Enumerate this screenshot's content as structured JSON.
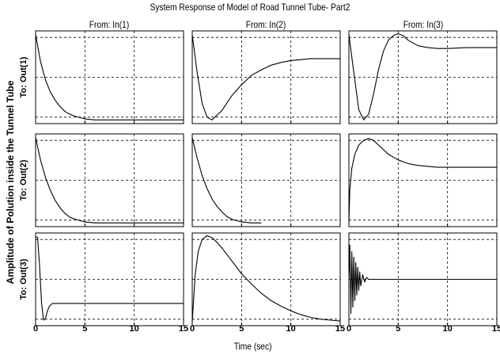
{
  "figure": {
    "title": "System Response of Model of Road Tunnel Tube- Part2",
    "xlabel": "Time (sec)",
    "ylabel": "Amplitude of Polution inside the Tunnel Tube",
    "columns": [
      "From: In(1)",
      "From: In(2)",
      "From: In(3)"
    ],
    "rows": [
      "To: Out(1)",
      "To: Out(2)",
      "To: Out(3)"
    ]
  },
  "chart_data": {
    "type": "line",
    "title": "System Response of Model of Road Tunnel Tube- Part2",
    "xlabel": "Time (sec)",
    "ylabel": "Amplitude of Polution inside the Tunnel Tube",
    "xlim": [
      0,
      15
    ],
    "xticks": [
      "0",
      "5",
      "10",
      "15"
    ],
    "grid": true,
    "ylim": [
      0,
      1
    ],
    "subplots": [
      {
        "row": "To: Out(1)",
        "col": "From: In(1)",
        "x": [
          0,
          0.5,
          1,
          1.5,
          2,
          2.5,
          3,
          3.5,
          4,
          5,
          6,
          8,
          10,
          12,
          15
        ],
        "y": [
          0.96,
          0.67,
          0.47,
          0.34,
          0.25,
          0.18,
          0.13,
          0.1,
          0.08,
          0.05,
          0.04,
          0.04,
          0.04,
          0.04,
          0.04
        ]
      },
      {
        "row": "To: Out(1)",
        "col": "From: In(2)",
        "x": [
          0,
          0.5,
          1,
          1.5,
          2,
          3,
          4,
          5,
          6,
          7,
          8,
          9,
          10,
          12,
          13,
          15
        ],
        "y": [
          0.96,
          0.55,
          0.22,
          0.07,
          0.04,
          0.14,
          0.3,
          0.42,
          0.52,
          0.58,
          0.63,
          0.66,
          0.68,
          0.7,
          0.7,
          0.7
        ]
      },
      {
        "row": "To: Out(1)",
        "col": "From: In(3)",
        "x": [
          0,
          0.5,
          1,
          1.5,
          2,
          2.5,
          3,
          3.5,
          4,
          4.5,
          5,
          5.5,
          6,
          7,
          8,
          9,
          10,
          12,
          15
        ],
        "y": [
          0.96,
          0.55,
          0.15,
          0.04,
          0.1,
          0.32,
          0.58,
          0.78,
          0.9,
          0.95,
          0.97,
          0.95,
          0.9,
          0.84,
          0.82,
          0.81,
          0.81,
          0.82,
          0.82
        ]
      },
      {
        "row": "To: Out(2)",
        "col": "From: In(1)",
        "x": [
          0,
          0.5,
          1,
          1.5,
          2,
          2.5,
          3,
          3.5,
          4,
          5,
          6,
          8,
          10,
          15
        ],
        "y": [
          0.96,
          0.72,
          0.53,
          0.39,
          0.28,
          0.2,
          0.14,
          0.1,
          0.08,
          0.05,
          0.04,
          0.04,
          0.04,
          0.04
        ]
      },
      {
        "row": "To: Out(2)",
        "col": "From: In(2)",
        "x": [
          0,
          0.5,
          1,
          1.5,
          2,
          2.5,
          3,
          3.5,
          4,
          5,
          6,
          7
        ],
        "y": [
          0.96,
          0.74,
          0.55,
          0.41,
          0.3,
          0.22,
          0.16,
          0.11,
          0.08,
          0.05,
          0.04,
          0.04
        ]
      },
      {
        "row": "To: Out(2)",
        "col": "From: In(3)",
        "x": [
          0,
          0.1,
          0.3,
          0.6,
          1,
          1.5,
          2,
          2.5,
          3,
          4,
          5,
          6,
          7,
          8,
          9,
          10,
          12,
          15
        ],
        "y": [
          0.04,
          0.4,
          0.63,
          0.78,
          0.88,
          0.93,
          0.95,
          0.93,
          0.88,
          0.78,
          0.72,
          0.68,
          0.66,
          0.65,
          0.64,
          0.64,
          0.64,
          0.64
        ]
      },
      {
        "row": "To: Out(3)",
        "col": "From: In(1)",
        "x": [
          0,
          0.2,
          0.4,
          0.6,
          0.8,
          1,
          1.2,
          1.4,
          1.7,
          2,
          2.5,
          3,
          5,
          10,
          15
        ],
        "y": [
          0.96,
          0.95,
          0.65,
          0.25,
          0.06,
          0.08,
          0.16,
          0.21,
          0.24,
          0.24,
          0.24,
          0.24,
          0.24,
          0.24,
          0.24
        ]
      },
      {
        "row": "To: Out(3)",
        "col": "From: In(2)",
        "x": [
          0,
          0.3,
          0.6,
          1,
          1.5,
          2,
          2.5,
          3,
          4,
          5,
          6,
          7,
          8,
          9,
          10,
          11,
          12,
          13,
          14,
          15
        ],
        "y": [
          0.04,
          0.55,
          0.8,
          0.93,
          0.97,
          0.95,
          0.9,
          0.84,
          0.7,
          0.56,
          0.45,
          0.35,
          0.27,
          0.21,
          0.16,
          0.12,
          0.09,
          0.07,
          0.06,
          0.05
        ]
      },
      {
        "row": "To: Out(3)",
        "col": "From: In(3)",
        "x": [
          0,
          0.1,
          0.2,
          0.3,
          0.4,
          0.5,
          0.6,
          0.7,
          0.8,
          0.9,
          1.0,
          1.1,
          1.2,
          1.4,
          1.6,
          1.8,
          2,
          2.5,
          3,
          5,
          10,
          15
        ],
        "y": [
          0.5,
          0.87,
          0.13,
          0.8,
          0.2,
          0.74,
          0.27,
          0.68,
          0.33,
          0.63,
          0.38,
          0.58,
          0.43,
          0.55,
          0.47,
          0.52,
          0.5,
          0.5,
          0.5,
          0.5,
          0.5,
          0.5
        ]
      }
    ]
  }
}
